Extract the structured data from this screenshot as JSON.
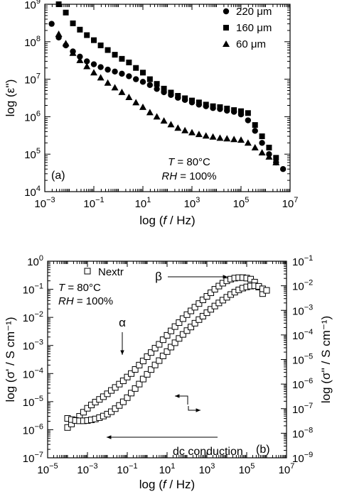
{
  "chart_data": [
    {
      "panel": "(a)",
      "type": "scatter",
      "xlabel_prefix": "log (",
      "xlabel_var": "f",
      "xlabel_suffix": " / Hz)",
      "ylabel": "log (ε'')",
      "xscale": "log",
      "yscale": "log",
      "xlim": [
        0.001,
        10000000
      ],
      "ylim": [
        10000,
        1000000000
      ],
      "xtick_exps": [
        -3,
        -1,
        1,
        3,
        5,
        7
      ],
      "ytick_exps": [
        4,
        5,
        6,
        7,
        8,
        9
      ],
      "grid": false,
      "legend_position": "top-right",
      "annotations": [
        {
          "var": "T",
          "rest": " = 80°C"
        },
        {
          "var": "RH",
          "rest": " = 100%"
        }
      ],
      "series": [
        {
          "name": "220 μm",
          "marker": "circle",
          "x": [
            0.0019,
            0.0037,
            0.0072,
            0.014,
            0.027,
            0.052,
            0.1,
            0.19,
            0.37,
            0.72,
            1.39,
            2.7,
            5.2,
            10,
            19.3,
            37,
            72,
            139,
            268,
            518,
            1000,
            1930,
            3730,
            7200,
            13900,
            26800,
            51800,
            100000,
            193000,
            373000,
            720000,
            1390000,
            2680000,
            5180000
          ],
          "y": [
            300000000,
            130000000,
            80000000,
            55000000,
            40000000,
            30000000,
            25000000,
            21000000,
            18000000,
            16000000,
            14000000,
            12000000,
            10000000,
            8500000,
            7000000,
            5500000,
            4500000,
            3800000,
            3200000,
            2800000,
            2400000,
            2100000,
            1900000,
            1700000,
            1600000,
            1450000,
            1350000,
            1150000,
            800000,
            420000,
            200000,
            100000,
            60000,
            40000
          ]
        },
        {
          "name": "160 μm",
          "marker": "square",
          "x": [
            0.0037,
            0.0072,
            0.014,
            0.027,
            0.052,
            0.1,
            0.19,
            0.37,
            0.72,
            1.39,
            2.7,
            5.2,
            10,
            19.3,
            37,
            72,
            139,
            268,
            518,
            1000,
            1930,
            3730,
            7200,
            13900,
            26800,
            51800,
            100000,
            193000,
            373000,
            720000,
            1390000,
            2680000
          ],
          "y": [
            1000000000,
            600000000,
            310000000,
            210000000,
            150000000,
            110000000,
            80000000,
            60000000,
            45000000,
            35000000,
            28000000,
            20000000,
            15000000,
            10000000,
            7500000,
            5600000,
            4400000,
            3600000,
            3100000,
            2700000,
            2400000,
            2100000,
            1900000,
            1800000,
            1650000,
            1500000,
            1400000,
            1250000,
            600000,
            300000,
            150000,
            80000
          ]
        },
        {
          "name": "60   μm",
          "marker": "triangle",
          "x": [
            0.0037,
            0.0072,
            0.014,
            0.027,
            0.052,
            0.1,
            0.19,
            0.37,
            0.72,
            1.39,
            2.7,
            5.2,
            10,
            19.3,
            37,
            72,
            139,
            268,
            518,
            1000,
            1930,
            3730,
            7200,
            13900,
            26800,
            51800,
            100000,
            193000,
            373000,
            720000,
            1390000,
            2680000
          ],
          "y": [
            160000000,
            90000000,
            50000000,
            32000000,
            22000000,
            15000000,
            11000000,
            8000000,
            6000000,
            4500000,
            3300000,
            2400000,
            1800000,
            1300000,
            1000000,
            780000,
            620000,
            500000,
            430000,
            380000,
            340000,
            310000,
            290000,
            270000,
            260000,
            250000,
            240000,
            200000,
            150000,
            110000,
            85000,
            60000
          ]
        }
      ]
    },
    {
      "panel": "(b)",
      "type": "scatter",
      "xlabel_prefix": "log (",
      "xlabel_var": "f",
      "xlabel_suffix": " / Hz)",
      "ylabel_left": "log (σ' / S cm⁻¹)",
      "ylabel_right": "log (σ'' / S cm⁻¹)",
      "xscale": "log",
      "yscale": "log",
      "xlim": [
        1e-05,
        10000000
      ],
      "ylim_left": [
        1e-07,
        1
      ],
      "ylim_right": [
        1e-09,
        0.1
      ],
      "xtick_exps": [
        -5,
        -3,
        -1,
        1,
        3,
        5,
        7
      ],
      "ytick_exps_left": [
        -7,
        -6,
        -5,
        -4,
        -3,
        -2,
        -1,
        0
      ],
      "ytick_exps_right": [
        -9,
        -8,
        -7,
        -6,
        -5,
        -4,
        -3,
        -2,
        -1
      ],
      "grid": false,
      "legend_position": "top-left",
      "legend": "Nextr",
      "annotations": [
        {
          "var": "T",
          "rest": " = 80°C"
        },
        {
          "var": "RH",
          "rest": " = 100%"
        }
      ],
      "labels": {
        "alpha": "α",
        "beta": "β",
        "dc": "dc conduction"
      },
      "series": [
        {
          "name": "σ'",
          "axis": "left",
          "marker": "open-square",
          "x": [
            0.0001,
            0.000158,
            0.00025,
            0.0004,
            0.00063,
            0.001,
            0.00158,
            0.0025,
            0.004,
            0.0063,
            0.01,
            0.0158,
            0.025,
            0.04,
            0.063,
            0.1,
            0.158,
            0.25,
            0.4,
            0.63,
            1,
            1.58,
            2.5,
            4,
            6.3,
            10,
            15.8,
            25,
            40,
            63,
            100,
            158,
            250,
            400,
            630,
            1000,
            1580,
            2500,
            4000,
            6300,
            10000,
            15800,
            25000,
            40000,
            63000,
            100000,
            158000,
            250000,
            400000,
            630000
          ],
          "y": [
            1.2e-06,
            1.6e-06,
            2.2e-06,
            3e-06,
            4.2e-06,
            5.8e-06,
            7.6e-06,
            9.6e-06,
            1.2e-05,
            1.5e-05,
            1.9e-05,
            2.5e-05,
            3.2e-05,
            4.2e-05,
            5.5e-05,
            7.5e-05,
            0.0001,
            0.00014,
            0.0002,
            0.00028,
            0.0004,
            0.00056,
            0.0008,
            0.0011,
            0.0016,
            0.0023,
            0.0033,
            0.0047,
            0.0065,
            0.009,
            0.0125,
            0.017,
            0.023,
            0.031,
            0.042,
            0.056,
            0.075,
            0.1,
            0.13,
            0.165,
            0.2,
            0.23,
            0.25,
            0.26,
            0.26,
            0.25,
            0.23,
            0.18,
            0.12,
            0.07
          ]
        },
        {
          "name": "σ''",
          "axis": "right",
          "marker": "open-square",
          "x": [
            0.0001,
            0.000158,
            0.00025,
            0.0004,
            0.00063,
            0.001,
            0.00158,
            0.0025,
            0.004,
            0.0063,
            0.01,
            0.0158,
            0.025,
            0.04,
            0.063,
            0.1,
            0.158,
            0.25,
            0.4,
            0.63,
            1,
            1.58,
            2.5,
            4,
            6.3,
            10,
            15.8,
            25,
            40,
            63,
            100,
            158,
            250,
            400,
            630,
            1000,
            1580,
            2500,
            4000,
            6300,
            10000,
            15800,
            25000,
            40000,
            63000,
            100000,
            158000,
            250000,
            400000,
            630000,
            1000000
          ],
          "y": [
            4e-08,
            3.6e-08,
            3.3e-08,
            3.2e-08,
            3.2e-08,
            3.3e-08,
            3.5e-08,
            3.8e-08,
            4.3e-08,
            5e-08,
            6e-08,
            7.5e-08,
            1e-07,
            1.35e-07,
            1.9e-07,
            2.8e-07,
            4.3e-07,
            6.6e-07,
            1e-06,
            1.6e-06,
            2.5e-06,
            3.9e-06,
            6e-06,
            9e-06,
            1.4e-05,
            2.1e-05,
            3.2e-05,
            4.8e-05,
            7.2e-05,
            0.000105,
            0.00015,
            0.00021,
            0.0003,
            0.00042,
            0.00058,
            0.0008,
            0.0011,
            0.0015,
            0.002,
            0.0026,
            0.0034,
            0.0044,
            0.0055,
            0.0068,
            0.008,
            0.009,
            0.0097,
            0.01,
            0.0095,
            0.0075,
            0.0065
          ]
        }
      ]
    }
  ]
}
